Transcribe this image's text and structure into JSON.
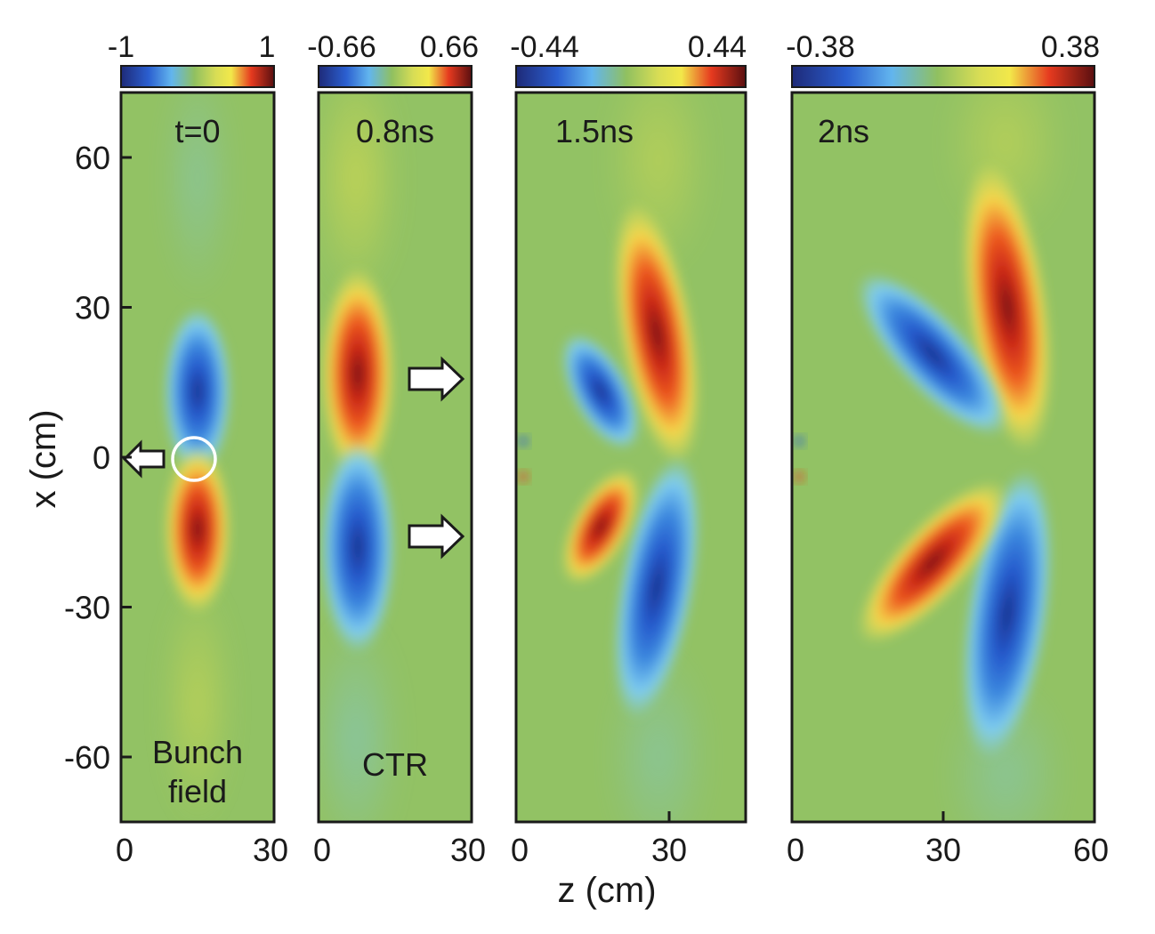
{
  "figure": {
    "ylabel": "x (cm)",
    "xlabel": "z (cm)"
  },
  "colors": {
    "neg_extreme": "#1e2a78",
    "neg": "#2b5fd0",
    "neg_mid": "#62b5ee",
    "zero": "#90c060",
    "pos_mid": "#f2e84a",
    "pos": "#e63a1f",
    "pos_extreme": "#5a0f10",
    "axis": "#1a1a1a"
  },
  "chart_data": [
    {
      "type": "heatmap",
      "panel": "t=0",
      "time_label": "t=0",
      "colorbar": {
        "min": -1,
        "max": 1,
        "min_label": "-1",
        "max_label": "1"
      },
      "xlim": [
        0,
        30
      ],
      "ylim": [
        -73,
        73
      ],
      "xticks": [
        0,
        30
      ],
      "xtick_labels": [
        "0",
        "30"
      ],
      "yticks": [
        60,
        30,
        0,
        -30,
        -60
      ],
      "ytick_labels": [
        "60",
        "30",
        "0",
        "-30",
        "-60"
      ],
      "bottom_label": [
        "Bunch",
        "field"
      ],
      "features": [
        {
          "z": 15,
          "x": 8,
          "sign": "negative",
          "extent_x": 22
        },
        {
          "z": 15,
          "x": -8,
          "sign": "positive",
          "extent_x": 22
        }
      ],
      "annotations": [
        {
          "kind": "circle",
          "z": 15,
          "x": 0
        },
        {
          "kind": "arrow",
          "direction": "left",
          "z": 4,
          "x": 0
        }
      ]
    },
    {
      "type": "heatmap",
      "panel": "0.8ns",
      "time_label": "0.8ns",
      "colorbar": {
        "min": -0.66,
        "max": 0.66,
        "min_label": "-0.66",
        "max_label": "0.66"
      },
      "xlim": [
        0,
        30
      ],
      "ylim": [
        -73,
        73
      ],
      "xticks": [
        0,
        30
      ],
      "xtick_labels": [
        "0",
        "30"
      ],
      "bottom_label": [
        "CTR"
      ],
      "features": [
        {
          "z": 7,
          "x": 13,
          "sign": "positive",
          "extent_x": 25
        },
        {
          "z": 7,
          "x": -13,
          "sign": "negative",
          "extent_x": 25
        }
      ],
      "annotations": [
        {
          "kind": "arrow",
          "direction": "right",
          "x": 16
        },
        {
          "kind": "arrow",
          "direction": "right",
          "x": -15
        }
      ]
    },
    {
      "type": "heatmap",
      "panel": "1.5ns",
      "time_label": "1.5ns",
      "colorbar": {
        "min": -0.44,
        "max": 0.44,
        "min_label": "-0.44",
        "max_label": "0.44"
      },
      "xlim": [
        0,
        45
      ],
      "ylim": [
        -73,
        73
      ],
      "xticks": [
        0,
        30
      ],
      "xtick_labels": [
        "0",
        "30"
      ],
      "features": [
        {
          "z": 28,
          "x": 22,
          "sign": "positive",
          "extent_x": 30
        },
        {
          "z": 19,
          "x": 12,
          "sign": "negative",
          "extent_x": 12
        },
        {
          "z": 28,
          "x": -22,
          "sign": "negative",
          "extent_x": 30
        },
        {
          "z": 19,
          "x": -12,
          "sign": "positive",
          "extent_x": 12
        }
      ]
    },
    {
      "type": "heatmap",
      "panel": "2ns",
      "time_label": "2ns",
      "colorbar": {
        "min": -0.38,
        "max": 0.38,
        "min_label": "-0.38",
        "max_label": "0.38"
      },
      "xlim": [
        0,
        60
      ],
      "ylim": [
        -73,
        73
      ],
      "xticks": [
        0,
        30,
        60
      ],
      "xtick_labels": [
        "0",
        "30",
        "60"
      ],
      "features": [
        {
          "z": 43,
          "x": 24,
          "sign": "positive",
          "extent_x": 32
        },
        {
          "z": 34,
          "x": 18,
          "sign": "negative",
          "extent_x": 18
        },
        {
          "z": 43,
          "x": -24,
          "sign": "negative",
          "extent_x": 32
        },
        {
          "z": 34,
          "x": -18,
          "sign": "positive",
          "extent_x": 18
        }
      ]
    }
  ]
}
